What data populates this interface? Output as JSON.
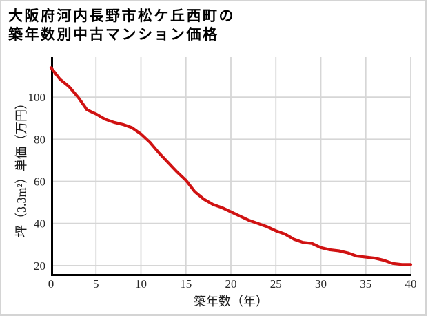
{
  "title": {
    "line1": "大阪府河内長野市松ケ丘西町の",
    "line2": "築年数別中古マンション価格"
  },
  "colors": {
    "line": "#d01212",
    "grid": "#d6d6d6",
    "axis": "#000000",
    "tick_text": "#262626",
    "card_border": "#d4d4d4",
    "background": "#ffffff"
  },
  "chart_data": {
    "type": "line",
    "title": "大阪府河内長野市松ケ丘西町の築年数別中古マンション価格",
    "xlabel": "築年数（年）",
    "ylabel": "坪（3.3m²）単価（万円）",
    "x_ticks": [
      0,
      5,
      10,
      15,
      20,
      25,
      30,
      35,
      40
    ],
    "y_ticks": [
      20,
      40,
      60,
      80,
      100
    ],
    "xlim": [
      0,
      40
    ],
    "ylim": [
      15.7,
      119
    ],
    "grid": true,
    "legend": false,
    "series": [
      {
        "color": "#d01212",
        "x": [
          0,
          1,
          2,
          3,
          4,
          5,
          6,
          7,
          8,
          9,
          10,
          11,
          12,
          13,
          14,
          15,
          16,
          17,
          18,
          19,
          20,
          21,
          22,
          23,
          24,
          25,
          26,
          27,
          28,
          29,
          30,
          31,
          32,
          33,
          34,
          35,
          36,
          37,
          38,
          39,
          40
        ],
        "values": [
          114,
          108.5,
          105,
          100,
          94,
          92,
          89.5,
          88,
          87,
          85.5,
          82.5,
          78.5,
          73.5,
          69,
          64.5,
          60.5,
          55,
          51.5,
          49,
          47.5,
          45.5,
          43.5,
          41.5,
          40,
          38.5,
          36.5,
          35,
          32.5,
          31,
          30.5,
          28.5,
          27.5,
          27,
          26,
          24.5,
          24,
          23.5,
          22.5,
          21,
          20.5,
          20.5
        ]
      }
    ]
  }
}
